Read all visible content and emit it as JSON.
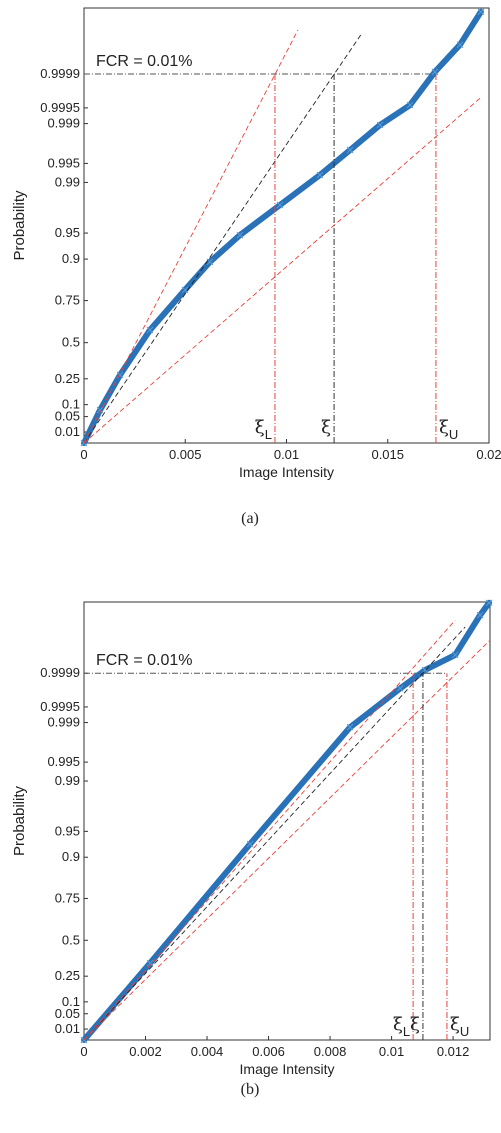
{
  "chart_data": [
    {
      "type": "probability",
      "yscale": "rayleigh",
      "caption": "(a)",
      "xlabel": "Image Intensity",
      "ylabel": "Probability",
      "xlim": [
        0,
        0.02
      ],
      "xticks": [
        0,
        0.005,
        0.01,
        0.015,
        0.02
      ],
      "ylim": [
        0.0001,
        0.9999972
      ],
      "yticks": [
        0.01,
        0.05,
        0.1,
        0.25,
        0.5,
        0.75,
        0.9,
        0.95,
        0.99,
        0.995,
        0.999,
        0.9995,
        0.9999
      ],
      "series": [
        {
          "style": "marker",
          "color": "#2a72b8",
          "x": [
            0,
            0.00079,
            0.00178,
            0.00326,
            0.00499,
            0.00622,
            0.0077,
            0.00968,
            0.01165,
            0.01314,
            0.01462,
            0.0161,
            0.01733,
            0.01857,
            0.0196
          ],
          "values": [
            0.0001,
            0.0754,
            0.275,
            0.584,
            0.798,
            0.893,
            0.947,
            0.9786,
            0.99233,
            0.99702,
            0.99894,
            0.99956,
            0.99991,
            0.999978,
            0.9999965
          ]
        },
        {
          "style": "dashed",
          "color": "#222222",
          "x": [
            0,
            0.01373
          ],
          "values": [
            0.0001,
            0.9999883
          ]
        },
        {
          "style": "dashed",
          "color": "#e8413c",
          "x": [
            0,
            0.01057
          ],
          "values": [
            0.0001,
            0.9999902
          ]
        },
        {
          "style": "dashed",
          "color": "#e8413c",
          "x": [
            0,
            0.01956
          ],
          "values": [
            0.0001,
            0.99968
          ]
        }
      ],
      "fcr": {
        "text": "FCR = 0.01%",
        "level": 0.9999,
        "color": "#555555"
      },
      "annotations": [
        {
          "text": "ξ",
          "sub": "L",
          "x": 0.00943,
          "color": "#e8413c"
        },
        {
          "text": "ξ",
          "x": 0.01235,
          "color": "#333333"
        },
        {
          "text": "ξ",
          "sub": "U",
          "x": 0.01738,
          "color": "#e8413c"
        }
      ]
    },
    {
      "type": "probability",
      "yscale": "rayleigh",
      "caption": "(b)",
      "xlabel": "Image Intensity",
      "ylabel": "Probability",
      "xlim": [
        0,
        0.0132
      ],
      "xticks": [
        0,
        0.002,
        0.004,
        0.006,
        0.008,
        0.01,
        0.012
      ],
      "ylim": [
        0.0001,
        0.999998
      ],
      "yticks": [
        0.01,
        0.05,
        0.1,
        0.25,
        0.5,
        0.75,
        0.9,
        0.95,
        0.99,
        0.995,
        0.999,
        0.9995,
        0.9999
      ],
      "series": [
        {
          "style": "marker",
          "color": "#2a72b8",
          "x": [
            0,
            0.00215,
            0.0054,
            0.00865,
            0.01028,
            0.01109,
            0.01207,
            0.01288,
            0.01317
          ],
          "values": [
            0.0001,
            0.34,
            0.929,
            0.99878,
            0.99979,
            0.999915,
            0.999961,
            0.9999957,
            0.9999979
          ]
        },
        {
          "style": "dashed",
          "color": "#222222",
          "x": [
            0,
            0.01239
          ],
          "values": [
            0.0001,
            0.9999914
          ]
        },
        {
          "style": "dashed",
          "color": "#e8413c",
          "x": [
            0,
            0.01207
          ],
          "values": [
            0.0001,
            0.9999942
          ]
        },
        {
          "style": "dashed",
          "color": "#e8413c",
          "x": [
            0,
            0.0132
          ],
          "values": [
            0.0001,
            0.9999822
          ]
        }
      ],
      "fcr": {
        "text": "FCR = 0.01%",
        "level": 0.9999,
        "color": "#555555"
      },
      "annotations": [
        {
          "text": "ξ",
          "sub": "L",
          "x": 0.0107,
          "color": "#e8413c"
        },
        {
          "text": "ξ",
          "x": 0.01102,
          "color": "#333333"
        },
        {
          "text": "ξ",
          "sub": "U",
          "x": 0.0118,
          "color": "#e8413c"
        }
      ]
    }
  ]
}
